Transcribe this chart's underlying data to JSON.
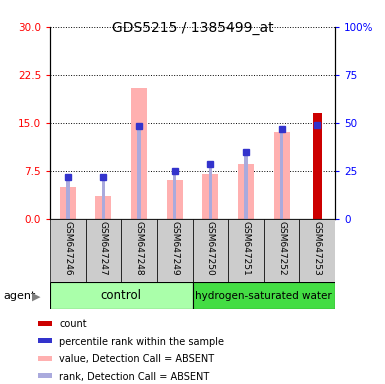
{
  "title": "GDS5215 / 1385499_at",
  "samples": [
    "GSM647246",
    "GSM647247",
    "GSM647248",
    "GSM647249",
    "GSM647250",
    "GSM647251",
    "GSM647252",
    "GSM647253"
  ],
  "value_absent": [
    5.0,
    3.5,
    20.5,
    6.0,
    7.0,
    8.5,
    13.5,
    null
  ],
  "rank_absent": [
    6.5,
    6.5,
    14.5,
    7.5,
    8.5,
    10.5,
    14.0,
    null
  ],
  "count_bar": [
    null,
    null,
    null,
    null,
    null,
    null,
    null,
    16.5
  ],
  "percentile_rank_val": [
    null,
    null,
    null,
    null,
    null,
    null,
    null,
    14.7
  ],
  "ylim_left": [
    0,
    30
  ],
  "ylim_right": [
    0,
    100
  ],
  "yticks_left": [
    0,
    7.5,
    15,
    22.5,
    30
  ],
  "yticks_right": [
    0,
    25,
    50,
    75,
    100
  ],
  "ytick_labels_right": [
    "0",
    "25",
    "50",
    "75",
    "100%"
  ],
  "color_count": "#cc0000",
  "color_percentile": "#3333cc",
  "color_value_absent": "#ffb0b0",
  "color_rank_absent": "#aaaadd",
  "color_control_bg": "#aaffaa",
  "color_hydro_bg": "#44dd44",
  "color_sample_bg": "#cccccc",
  "group_label_control": "control",
  "group_label_hydro": "hydrogen-saturated water",
  "legend_items": [
    {
      "color": "#cc0000",
      "label": "count"
    },
    {
      "color": "#3333cc",
      "label": "percentile rank within the sample"
    },
    {
      "color": "#ffb0b0",
      "label": "value, Detection Call = ABSENT"
    },
    {
      "color": "#aaaadd",
      "label": "rank, Detection Call = ABSENT"
    }
  ],
  "agent_label": "agent"
}
